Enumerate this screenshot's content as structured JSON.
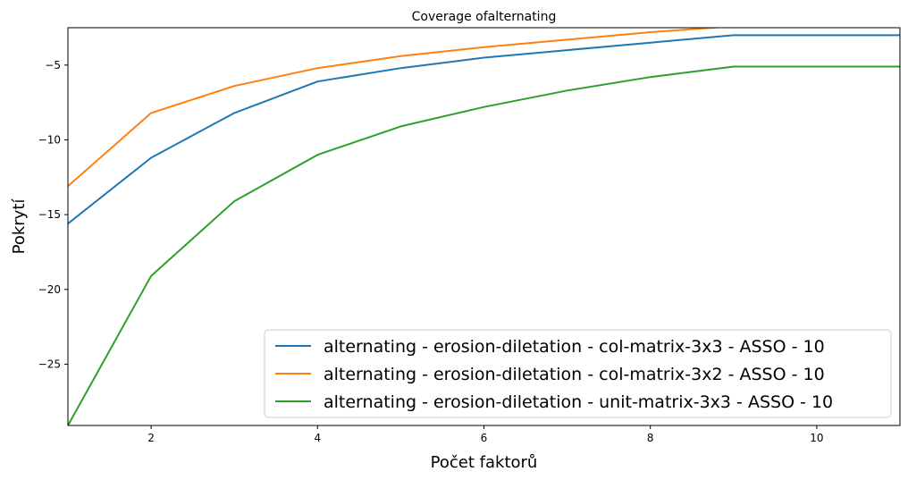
{
  "chart_data": {
    "type": "line",
    "title": "Coverage ofalternating",
    "xlabel": "Počet faktorů",
    "ylabel": "Pokrytí",
    "xlim": [
      1,
      11
    ],
    "ylim": [
      -29.1,
      -2.5
    ],
    "xticks": [
      2,
      4,
      6,
      8,
      10
    ],
    "yticks": [
      -25,
      -20,
      -15,
      -10,
      -5
    ],
    "x": [
      1,
      2,
      3,
      4,
      5,
      6,
      7,
      8,
      9,
      10,
      11
    ],
    "grid": false,
    "legend_position": "bottom-right",
    "series": [
      {
        "name": "alternating - erosion-diletation - col-matrix-3x3 - ASSO - 10",
        "color": "#1f77b4",
        "values": [
          -15.6,
          -11.2,
          -8.2,
          -6.1,
          -5.2,
          -4.5,
          -4.0,
          -3.5,
          -3.0,
          -3.0,
          -3.0
        ]
      },
      {
        "name": "alternating - erosion-diletation - col-matrix-3x2 - ASSO - 10",
        "color": "#ff7f0e",
        "values": [
          -13.1,
          -8.2,
          -6.4,
          -5.2,
          -4.4,
          -3.8,
          -3.3,
          -2.8,
          -2.4,
          -2.4,
          -2.4
        ]
      },
      {
        "name": "alternating - erosion-diletation - unit-matrix-3x3 - ASSO - 10",
        "color": "#2ca02c",
        "values": [
          -29.1,
          -19.1,
          -14.1,
          -11.0,
          -9.1,
          -7.8,
          -6.7,
          -5.8,
          -5.1,
          -5.1,
          -5.1
        ]
      }
    ]
  }
}
